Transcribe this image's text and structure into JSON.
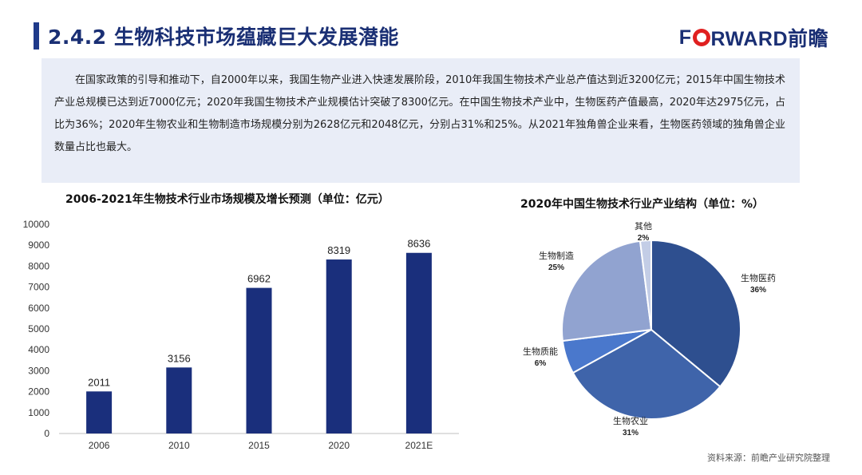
{
  "header": {
    "title": "2.4.2 生物科技市场蕴藏巨大发展潜能",
    "logo_prefix": "F",
    "logo_suffix": "RWARD前瞻"
  },
  "intro": {
    "text": "在国家政策的引导和推动下，自2000年以来，我国生物产业进入快速发展阶段，2010年我国生物技术产业总产值达到近3200亿元；2015年中国生物技术产业总规模已达到近7000亿元；2020年我国生物技术产业规模估计突破了8300亿元。在中国生物技术产业中，生物医药产值最高，2020年达2975亿元，占比为36%；2020年生物农业和生物制造市场规模分别为2628亿元和2048亿元，分别占31%和25%。从2021年独角兽企业来看，生物医药领域的独角兽企业数量占比也最大。"
  },
  "chart_data": [
    {
      "type": "bar",
      "title": "2006-2021年生物技术行业市场规模及增长预测（单位：亿元）",
      "categories": [
        "2006",
        "2010",
        "2015",
        "2020",
        "2021E"
      ],
      "values": [
        2011,
        3156,
        6962,
        8319,
        8636
      ],
      "value_labels": [
        "2011",
        "3156",
        "6962",
        "8319",
        "8636"
      ],
      "ylim": [
        0,
        10000
      ],
      "yticks": [
        "0",
        "1000",
        "2000",
        "3000",
        "4000",
        "5000",
        "6000",
        "7000",
        "8000",
        "9000",
        "10000"
      ],
      "bar_color": "#1a2f7c",
      "grid": false
    },
    {
      "type": "pie",
      "title": "2020年中国生物技术行业产业结构（单位：%）",
      "slices": [
        {
          "name": "生物医药",
          "value": 36,
          "label": "36%",
          "color": "#2e4f8f"
        },
        {
          "name": "生物农业",
          "value": 31,
          "label": "31%",
          "color": "#3f64aa"
        },
        {
          "name": "生物质能",
          "value": 6,
          "label": "6%",
          "color": "#4a78cc"
        },
        {
          "name": "生物制造",
          "value": 25,
          "label": "25%",
          "color": "#91a3d0"
        },
        {
          "name": "其他",
          "value": 2,
          "label": "2%",
          "color": "#c3cde6"
        }
      ]
    }
  ],
  "footer": {
    "source": "资料来源：前瞻产业研究院整理"
  }
}
